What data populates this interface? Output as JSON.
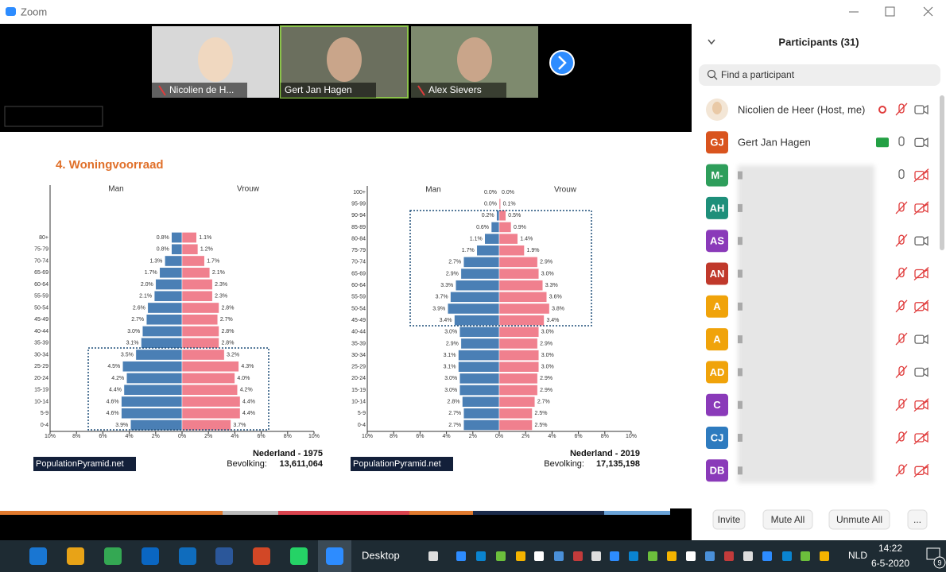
{
  "window": {
    "title": "Zoom"
  },
  "videos": [
    {
      "name": "Nicolien de H..."
    },
    {
      "name": "Gert Jan Hagen"
    },
    {
      "name": "Alex Sievers"
    }
  ],
  "slide": {
    "title": "4. Woningvoorraad"
  },
  "chart_data": [
    {
      "type": "pyramid",
      "categories": [
        "80+",
        "75-79",
        "70-74",
        "65-69",
        "60-64",
        "55-59",
        "50-54",
        "45-49",
        "40-44",
        "35-39",
        "30-34",
        "25-29",
        "20-24",
        "15-19",
        "10-14",
        "5-9",
        "0-4"
      ],
      "series": [
        {
          "name": "Man",
          "color": "#4a7fb5",
          "values": [
            0.8,
            0.8,
            1.3,
            1.7,
            2.0,
            2.1,
            2.6,
            2.7,
            3.0,
            3.1,
            3.5,
            4.5,
            4.2,
            4.4,
            4.6,
            4.6,
            3.9
          ],
          "value_labels": [
            "0.8%",
            "0.8%",
            "1.3%",
            "1.7%",
            "2.0%",
            "2.1%",
            "2.6%",
            "2.7%",
            "3.0%",
            "3.1%",
            "3.5%",
            "4.5%",
            "4.2%",
            "4.4%",
            "4.6%",
            "4.6%",
            "3.9%"
          ]
        },
        {
          "name": "Vrouw",
          "color": "#f0808e",
          "values": [
            1.1,
            1.2,
            1.7,
            2.1,
            2.3,
            2.3,
            2.8,
            2.7,
            2.8,
            2.8,
            3.2,
            4.3,
            4.0,
            4.2,
            4.4,
            4.4,
            3.7
          ],
          "value_labels": [
            "1.1%",
            "1.2%",
            "1.7%",
            "2.1%",
            "2.3%",
            "2.3%",
            "2.8%",
            "2.7%",
            "2.8%",
            "2.8%",
            "3.2%",
            "4.3%",
            "4.0%",
            "4.2%",
            "4.4%",
            "4.4%",
            "3.7%"
          ]
        }
      ],
      "xlim": [
        -10,
        10
      ],
      "xticks": [
        {
          "value": -10,
          "label": "10%"
        },
        {
          "value": -8,
          "label": "8%"
        },
        {
          "value": -6,
          "label": "6%"
        },
        {
          "value": -4,
          "label": "4%"
        },
        {
          "value": -2,
          "label": "2%"
        },
        {
          "value": 0,
          "label": "0%"
        },
        {
          "value": 2,
          "label": "2%"
        },
        {
          "value": 4,
          "label": "4%"
        },
        {
          "value": 6,
          "label": "6%"
        },
        {
          "value": 8,
          "label": "8%"
        },
        {
          "value": 10,
          "label": "10%"
        }
      ],
      "source": "PopulationPyramid.net",
      "country_year": "Nederland - 1975",
      "population_label": "Bevolking:",
      "population": "13,611,064"
    },
    {
      "type": "pyramid",
      "categories": [
        "100+",
        "95-99",
        "90-94",
        "85-89",
        "80-84",
        "75-79",
        "70-74",
        "65-69",
        "60-64",
        "55-59",
        "50-54",
        "45-49",
        "40-44",
        "35-39",
        "30-34",
        "25-29",
        "20-24",
        "15-19",
        "10-14",
        "5-9",
        "0-4"
      ],
      "series": [
        {
          "name": "Man",
          "color": "#4a7fb5",
          "values": [
            0.0,
            0.0,
            0.2,
            0.6,
            1.1,
            1.7,
            2.7,
            2.9,
            3.3,
            3.7,
            3.9,
            3.4,
            3.0,
            2.9,
            3.1,
            3.1,
            3.0,
            3.0,
            2.8,
            2.7,
            2.7
          ],
          "value_labels": [
            "0.0%",
            "0.0%",
            "0.2%",
            "0.6%",
            "1.1%",
            "1.7%",
            "2.7%",
            "2.9%",
            "3.3%",
            "3.7%",
            "3.9%",
            "3.4%",
            "3.0%",
            "2.9%",
            "3.1%",
            "3.1%",
            "3.0%",
            "3.0%",
            "2.8%",
            "2.7%",
            "2.7%"
          ]
        },
        {
          "name": "Vrouw",
          "color": "#f0808e",
          "values": [
            0.0,
            0.1,
            0.5,
            0.9,
            1.4,
            1.9,
            2.9,
            3.0,
            3.3,
            3.6,
            3.8,
            3.4,
            3.0,
            2.9,
            3.0,
            3.0,
            2.9,
            2.9,
            2.7,
            2.5,
            2.5
          ],
          "value_labels": [
            "0.0%",
            "0.1%",
            "0.5%",
            "0.9%",
            "1.4%",
            "1.9%",
            "2.9%",
            "3.0%",
            "3.3%",
            "3.6%",
            "3.8%",
            "3.4%",
            "3.0%",
            "2.9%",
            "3.0%",
            "3.0%",
            "2.9%",
            "2.9%",
            "2.7%",
            "2.5%",
            "2.5%"
          ]
        }
      ],
      "xlim": [
        -10,
        10
      ],
      "xticks": [
        {
          "value": -10,
          "label": "10%"
        },
        {
          "value": -8,
          "label": "8%"
        },
        {
          "value": -6,
          "label": "6%"
        },
        {
          "value": -4,
          "label": "4%"
        },
        {
          "value": -2,
          "label": "2%"
        },
        {
          "value": 0,
          "label": "0%"
        },
        {
          "value": 2,
          "label": "2%"
        },
        {
          "value": 4,
          "label": "4%"
        },
        {
          "value": 6,
          "label": "6%"
        },
        {
          "value": 8,
          "label": "8%"
        },
        {
          "value": 10,
          "label": "10%"
        }
      ],
      "source": "PopulationPyramid.net",
      "country_year": "Nederland - 2019",
      "population_label": "Bevolking:",
      "population": "17,135,198"
    }
  ],
  "participants": {
    "title": "Participants (31)",
    "search": "Find a participant",
    "list": [
      {
        "name": "Nicolien de Heer (Host, me)"
      },
      {
        "initials": "GJ",
        "name": "Gert Jan Hagen",
        "color": "#d9541e"
      },
      {
        "initials": "M-",
        "color": "#2e9e5b"
      },
      {
        "initials": "AH",
        "color": "#1e8f7a"
      },
      {
        "initials": "AS",
        "color": "#8a3ab9"
      },
      {
        "initials": "AN",
        "color": "#c0392b"
      },
      {
        "initials": "A",
        "color": "#f0a30a"
      },
      {
        "initials": "A",
        "color": "#f0a30a"
      },
      {
        "initials": "AD",
        "color": "#f0a30a"
      },
      {
        "initials": "C",
        "color": "#8a3ab9"
      },
      {
        "initials": "CJ",
        "color": "#2e7bbf"
      },
      {
        "initials": "DB",
        "color": "#8a3ab9"
      }
    ],
    "buttons": [
      "Invite",
      "Mute All",
      "Unmute All",
      "..."
    ]
  },
  "taskbar": {
    "desktop": "Desktop",
    "language": "NLD",
    "time": "14:22",
    "date": "6-5-2020",
    "notifications": "9"
  }
}
